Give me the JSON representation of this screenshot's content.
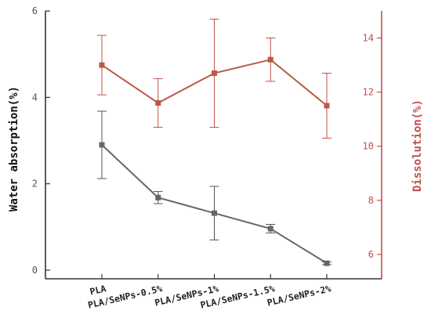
{
  "chart_data": {
    "type": "line",
    "categories": [
      "PLA",
      "PLA/SeNPs-0.5%",
      "PLA/SeNPs-1%",
      "PLA/SeNPs-1.5%",
      "PLA/SeNPs-2%"
    ],
    "ylabel": "Water absorption(%)",
    "y2label": "Dissolution(%)",
    "ylim": [
      -0.2,
      6
    ],
    "y2lim": [
      5.1,
      15
    ],
    "yticks": [
      "0",
      "2",
      "4",
      "6"
    ],
    "y2ticks": [
      "6",
      "8",
      "10",
      "12",
      "14"
    ],
    "series": [
      {
        "axis": "left",
        "color": "#666666",
        "marker": "square",
        "values": [
          2.9,
          1.68,
          1.32,
          0.96,
          0.16
        ],
        "error": [
          0.78,
          0.14,
          0.62,
          0.1,
          0.03
        ]
      },
      {
        "axis": "right",
        "color": "#b85a44",
        "marker": "square",
        "values": [
          13.0,
          11.6,
          12.7,
          13.2,
          11.5
        ],
        "error": [
          1.1,
          0.9,
          2.0,
          0.8,
          1.2
        ]
      }
    ],
    "grid": false,
    "legend": "none"
  }
}
